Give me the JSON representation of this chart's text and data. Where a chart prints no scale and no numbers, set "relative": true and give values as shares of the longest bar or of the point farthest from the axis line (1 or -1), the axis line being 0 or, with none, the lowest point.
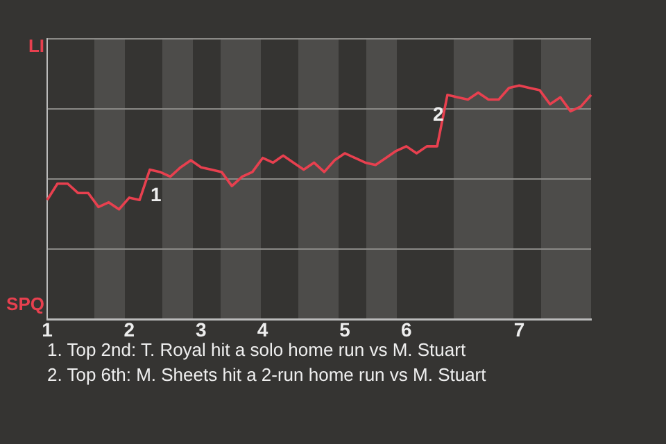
{
  "chart_data": {
    "type": "line",
    "relative": true,
    "categories": [
      "1",
      null,
      null,
      null,
      null,
      null,
      null,
      null,
      "2",
      null,
      null,
      null,
      null,
      null,
      null,
      "3",
      null,
      null,
      null,
      null,
      null,
      "4",
      null,
      null,
      null,
      null,
      null,
      null,
      null,
      "5",
      null,
      null,
      null,
      null,
      null,
      "6",
      null,
      null,
      null,
      null,
      null,
      null,
      null,
      null,
      null,
      null,
      "7",
      null,
      null,
      null,
      null,
      null,
      null,
      null
    ],
    "series": [
      {
        "color": "#e8404f",
        "values": [
          0.51,
          0.58,
          0.58,
          0.54,
          0.54,
          0.48,
          0.5,
          0.47,
          0.52,
          0.51,
          0.64,
          0.63,
          0.61,
          0.65,
          0.68,
          0.65,
          0.64,
          0.63,
          0.57,
          0.61,
          0.63,
          0.69,
          0.67,
          0.7,
          0.67,
          0.64,
          0.67,
          0.63,
          0.68,
          0.71,
          0.69,
          0.67,
          0.66,
          0.69,
          0.72,
          0.74,
          0.71,
          0.74,
          0.74,
          0.96,
          0.95,
          0.94,
          0.97,
          0.94,
          0.94,
          0.99,
          1,
          0.99,
          0.98,
          0.92,
          0.95,
          0.89,
          0.91,
          0.96
        ]
      }
    ],
    "annotations": [
      "LI",
      "SPQ",
      "1",
      "2",
      "1. Top 2nd: T. Royal hit a solo home run vs M. Stuart",
      "2. Top 6th: M. Sheets hit a 2-run home run vs M. Stuart"
    ],
    "grid": "y",
    "marker": "none",
    "line_style": "solid"
  }
}
